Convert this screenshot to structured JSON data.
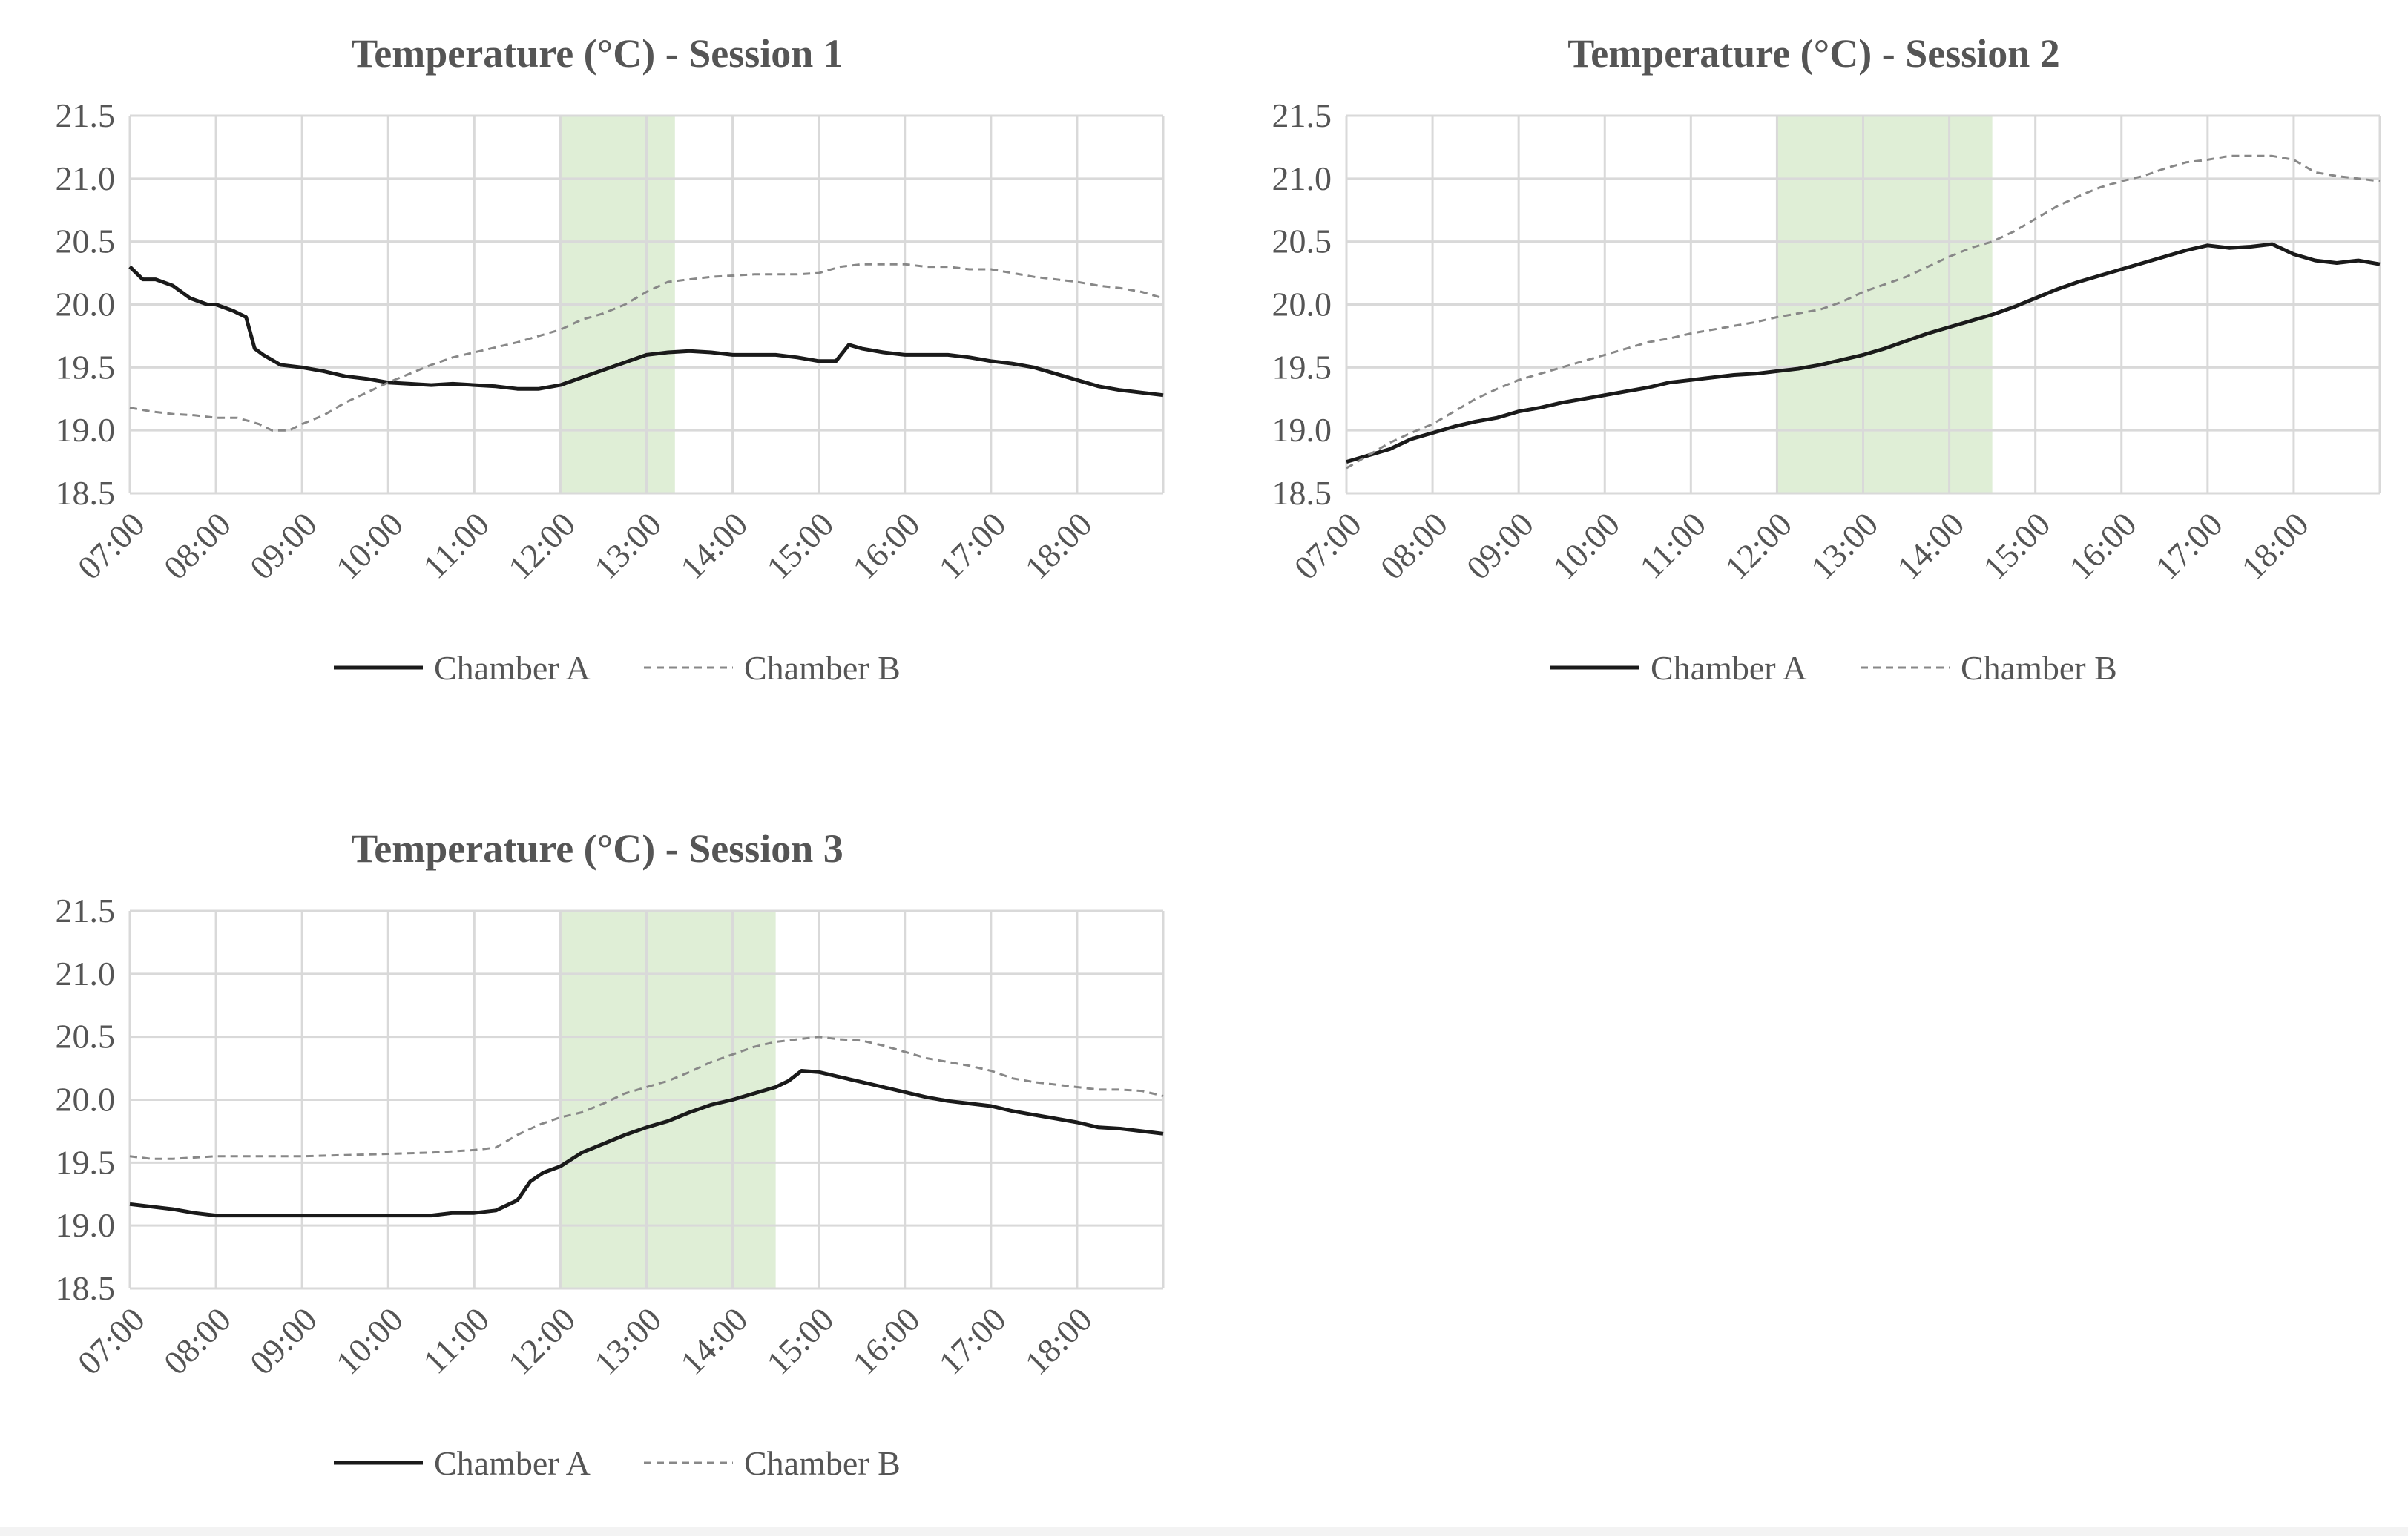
{
  "chart_data": [
    {
      "type": "line",
      "title": "Temperature (°C) - Session 1",
      "xlabel": "",
      "ylabel": "",
      "ylim": [
        18.5,
        21.5
      ],
      "xlim_hours": [
        7,
        19
      ],
      "y_ticks": [
        "18.5",
        "19.0",
        "19.5",
        "20.0",
        "20.5",
        "21.0",
        "21.5"
      ],
      "x_ticks": [
        "07:00",
        "08:00",
        "09:00",
        "10:00",
        "11:00",
        "12:00",
        "13:00",
        "14:00",
        "15:00",
        "16:00",
        "17:00",
        "18:00"
      ],
      "grid": true,
      "legend_position": "bottom",
      "shaded_interval": {
        "start": 12.0,
        "end": 13.33,
        "color": "#dfeed6"
      },
      "series": [
        {
          "name": "Chamber A",
          "style": "solid",
          "color": "#1a1a1a",
          "x": [
            7.0,
            7.15,
            7.3,
            7.5,
            7.7,
            7.9,
            8.0,
            8.2,
            8.35,
            8.45,
            8.55,
            8.75,
            9.0,
            9.25,
            9.5,
            9.75,
            10.0,
            10.25,
            10.5,
            10.75,
            11.0,
            11.25,
            11.5,
            11.75,
            12.0,
            12.25,
            12.5,
            12.75,
            13.0,
            13.25,
            13.5,
            13.75,
            14.0,
            14.25,
            14.5,
            14.75,
            15.0,
            15.2,
            15.35,
            15.5,
            15.75,
            16.0,
            16.25,
            16.5,
            16.75,
            17.0,
            17.25,
            17.5,
            17.75,
            18.0,
            18.25,
            18.5,
            18.75,
            19.0
          ],
          "values": [
            20.3,
            20.2,
            20.2,
            20.15,
            20.05,
            20.0,
            20.0,
            19.95,
            19.9,
            19.65,
            19.6,
            19.52,
            19.5,
            19.47,
            19.43,
            19.41,
            19.38,
            19.37,
            19.36,
            19.37,
            19.36,
            19.35,
            19.33,
            19.33,
            19.36,
            19.42,
            19.48,
            19.54,
            19.6,
            19.62,
            19.63,
            19.62,
            19.6,
            19.6,
            19.6,
            19.58,
            19.55,
            19.55,
            19.68,
            19.65,
            19.62,
            19.6,
            19.6,
            19.6,
            19.58,
            19.55,
            19.53,
            19.5,
            19.45,
            19.4,
            19.35,
            19.32,
            19.3,
            19.28
          ]
        },
        {
          "name": "Chamber B",
          "style": "dashed",
          "color": "#888888",
          "x": [
            7.0,
            7.25,
            7.5,
            7.75,
            8.0,
            8.25,
            8.5,
            8.65,
            8.85,
            9.0,
            9.25,
            9.5,
            9.75,
            10.0,
            10.25,
            10.5,
            10.75,
            11.0,
            11.25,
            11.5,
            11.75,
            12.0,
            12.25,
            12.5,
            12.75,
            13.0,
            13.25,
            13.5,
            13.75,
            14.0,
            14.25,
            14.5,
            14.75,
            15.0,
            15.25,
            15.5,
            15.75,
            16.0,
            16.25,
            16.5,
            16.75,
            17.0,
            17.25,
            17.5,
            17.75,
            18.0,
            18.25,
            18.5,
            18.75,
            19.0
          ],
          "values": [
            19.18,
            19.15,
            19.13,
            19.12,
            19.1,
            19.1,
            19.05,
            19.0,
            19.0,
            19.05,
            19.12,
            19.22,
            19.3,
            19.38,
            19.45,
            19.52,
            19.58,
            19.62,
            19.66,
            19.7,
            19.75,
            19.8,
            19.88,
            19.93,
            20.0,
            20.1,
            20.18,
            20.2,
            20.22,
            20.23,
            20.24,
            20.24,
            20.24,
            20.25,
            20.3,
            20.32,
            20.32,
            20.32,
            20.3,
            20.3,
            20.28,
            20.28,
            20.25,
            20.22,
            20.2,
            20.18,
            20.15,
            20.13,
            20.1,
            20.05
          ]
        }
      ]
    },
    {
      "type": "line",
      "title": "Temperature (°C) - Session  2",
      "xlabel": "",
      "ylabel": "",
      "ylim": [
        18.5,
        21.5
      ],
      "xlim_hours": [
        7,
        19
      ],
      "y_ticks": [
        "18.5",
        "19.0",
        "19.5",
        "20.0",
        "20.5",
        "21.0",
        "21.5"
      ],
      "x_ticks": [
        "07:00",
        "08:00",
        "09:00",
        "10:00",
        "11:00",
        "12:00",
        "13:00",
        "14:00",
        "15:00",
        "16:00",
        "17:00",
        "18:00"
      ],
      "grid": true,
      "legend_position": "bottom",
      "shaded_interval": {
        "start": 12.0,
        "end": 14.5,
        "color": "#dfeed6"
      },
      "series": [
        {
          "name": "Chamber A",
          "style": "solid",
          "color": "#1a1a1a",
          "x": [
            7.0,
            7.25,
            7.5,
            7.75,
            8.0,
            8.25,
            8.5,
            8.75,
            9.0,
            9.25,
            9.5,
            9.75,
            10.0,
            10.25,
            10.5,
            10.75,
            11.0,
            11.25,
            11.5,
            11.75,
            12.0,
            12.25,
            12.5,
            12.75,
            13.0,
            13.25,
            13.5,
            13.75,
            14.0,
            14.25,
            14.5,
            14.75,
            15.0,
            15.25,
            15.5,
            15.75,
            16.0,
            16.25,
            16.5,
            16.75,
            17.0,
            17.25,
            17.5,
            17.75,
            18.0,
            18.25,
            18.5,
            18.75,
            19.0
          ],
          "values": [
            18.75,
            18.8,
            18.85,
            18.93,
            18.98,
            19.03,
            19.07,
            19.1,
            19.15,
            19.18,
            19.22,
            19.25,
            19.28,
            19.31,
            19.34,
            19.38,
            19.4,
            19.42,
            19.44,
            19.45,
            19.47,
            19.49,
            19.52,
            19.56,
            19.6,
            19.65,
            19.71,
            19.77,
            19.82,
            19.87,
            19.92,
            19.98,
            20.05,
            20.12,
            20.18,
            20.23,
            20.28,
            20.33,
            20.38,
            20.43,
            20.47,
            20.45,
            20.46,
            20.48,
            20.4,
            20.35,
            20.33,
            20.35,
            20.32
          ]
        },
        {
          "name": "Chamber B",
          "style": "dashed",
          "color": "#888888",
          "x": [
            7.0,
            7.25,
            7.5,
            7.75,
            8.0,
            8.25,
            8.5,
            8.75,
            9.0,
            9.25,
            9.5,
            9.75,
            10.0,
            10.25,
            10.5,
            10.75,
            11.0,
            11.25,
            11.5,
            11.75,
            12.0,
            12.25,
            12.5,
            12.75,
            13.0,
            13.25,
            13.5,
            13.75,
            14.0,
            14.25,
            14.5,
            14.75,
            15.0,
            15.25,
            15.5,
            15.75,
            16.0,
            16.25,
            16.5,
            16.75,
            17.0,
            17.25,
            17.5,
            17.75,
            18.0,
            18.25,
            18.5,
            18.75,
            19.0
          ],
          "values": [
            18.7,
            18.8,
            18.9,
            18.98,
            19.05,
            19.15,
            19.25,
            19.33,
            19.4,
            19.45,
            19.5,
            19.55,
            19.6,
            19.65,
            19.7,
            19.73,
            19.77,
            19.8,
            19.83,
            19.86,
            19.9,
            19.93,
            19.96,
            20.02,
            20.1,
            20.16,
            20.22,
            20.3,
            20.38,
            20.45,
            20.5,
            20.58,
            20.68,
            20.78,
            20.86,
            20.93,
            20.98,
            21.02,
            21.08,
            21.13,
            21.15,
            21.18,
            21.18,
            21.18,
            21.15,
            21.05,
            21.02,
            21.0,
            20.98
          ]
        }
      ]
    },
    {
      "type": "line",
      "title": "Temperature (°C) - Session  3",
      "xlabel": "",
      "ylabel": "",
      "ylim": [
        18.5,
        21.5
      ],
      "xlim_hours": [
        7,
        19
      ],
      "y_ticks": [
        "18.5",
        "19.0",
        "19.5",
        "20.0",
        "20.5",
        "21.0",
        "21.5"
      ],
      "x_ticks": [
        "07:00",
        "08:00",
        "09:00",
        "10:00",
        "11:00",
        "12:00",
        "13:00",
        "14:00",
        "15:00",
        "16:00",
        "17:00",
        "18:00"
      ],
      "grid": true,
      "legend_position": "bottom",
      "shaded_interval": {
        "start": 12.0,
        "end": 14.5,
        "color": "#dfeed6"
      },
      "series": [
        {
          "name": "Chamber A",
          "style": "solid",
          "color": "#1a1a1a",
          "x": [
            7.0,
            7.25,
            7.5,
            7.75,
            8.0,
            8.25,
            8.5,
            8.75,
            9.0,
            9.5,
            10.0,
            10.5,
            10.75,
            11.0,
            11.25,
            11.5,
            11.65,
            11.8,
            12.0,
            12.25,
            12.5,
            12.75,
            13.0,
            13.25,
            13.5,
            13.75,
            14.0,
            14.25,
            14.5,
            14.65,
            14.8,
            15.0,
            15.25,
            15.5,
            15.75,
            16.0,
            16.25,
            16.5,
            16.75,
            17.0,
            17.25,
            17.5,
            17.75,
            18.0,
            18.25,
            18.5,
            18.75,
            19.0
          ],
          "values": [
            19.17,
            19.15,
            19.13,
            19.1,
            19.08,
            19.08,
            19.08,
            19.08,
            19.08,
            19.08,
            19.08,
            19.08,
            19.1,
            19.1,
            19.12,
            19.2,
            19.35,
            19.42,
            19.47,
            19.58,
            19.65,
            19.72,
            19.78,
            19.83,
            19.9,
            19.96,
            20.0,
            20.05,
            20.1,
            20.15,
            20.23,
            20.22,
            20.18,
            20.14,
            20.1,
            20.06,
            20.02,
            19.99,
            19.97,
            19.95,
            19.91,
            19.88,
            19.85,
            19.82,
            19.78,
            19.77,
            19.75,
            19.73
          ]
        },
        {
          "name": "Chamber B",
          "style": "dashed",
          "color": "#888888",
          "x": [
            7.0,
            7.25,
            7.5,
            7.75,
            8.0,
            8.5,
            9.0,
            9.5,
            10.0,
            10.5,
            11.0,
            11.25,
            11.5,
            11.75,
            12.0,
            12.25,
            12.5,
            12.75,
            13.0,
            13.25,
            13.5,
            13.75,
            14.0,
            14.25,
            14.5,
            14.75,
            15.0,
            15.25,
            15.5,
            15.75,
            16.0,
            16.25,
            16.5,
            16.75,
            17.0,
            17.25,
            17.5,
            17.75,
            18.0,
            18.25,
            18.5,
            18.75,
            19.0
          ],
          "values": [
            19.55,
            19.53,
            19.53,
            19.54,
            19.55,
            19.55,
            19.55,
            19.56,
            19.57,
            19.58,
            19.6,
            19.62,
            19.72,
            19.8,
            19.86,
            19.9,
            19.97,
            20.05,
            20.1,
            20.15,
            20.22,
            20.3,
            20.36,
            20.42,
            20.46,
            20.48,
            20.5,
            20.48,
            20.47,
            20.43,
            20.38,
            20.33,
            20.3,
            20.27,
            20.23,
            20.17,
            20.14,
            20.12,
            20.1,
            20.08,
            20.08,
            20.07,
            20.03
          ]
        }
      ]
    }
  ]
}
